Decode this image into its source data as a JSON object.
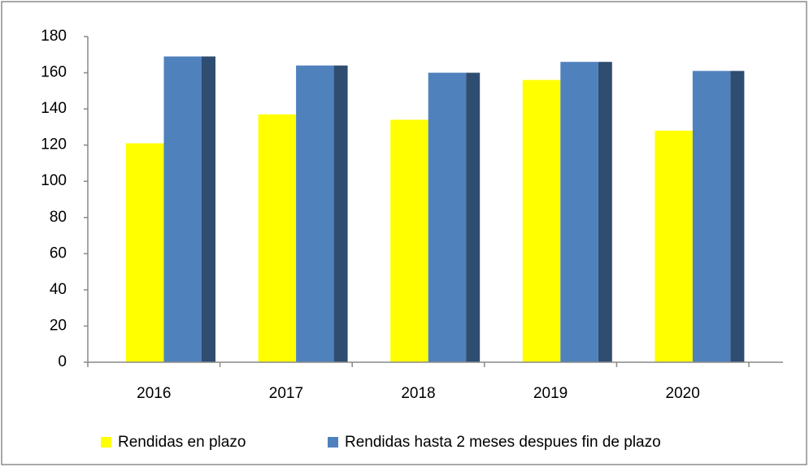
{
  "chart_data": {
    "type": "bar",
    "categories": [
      "2016",
      "2017",
      "2018",
      "2019",
      "2020"
    ],
    "series": [
      {
        "name": "Rendidas en plazo",
        "color": "#ffff00",
        "values": [
          121,
          137,
          134,
          156,
          128
        ]
      },
      {
        "name": "Rendidas hasta 2 meses despues fin de plazo",
        "color": "#4f81bd",
        "values": [
          169,
          164,
          160,
          166,
          161
        ]
      }
    ],
    "ylim": [
      0,
      180
    ],
    "yticks": [
      0,
      20,
      40,
      60,
      80,
      100,
      120,
      140,
      160,
      180
    ],
    "legend": "bottom"
  }
}
